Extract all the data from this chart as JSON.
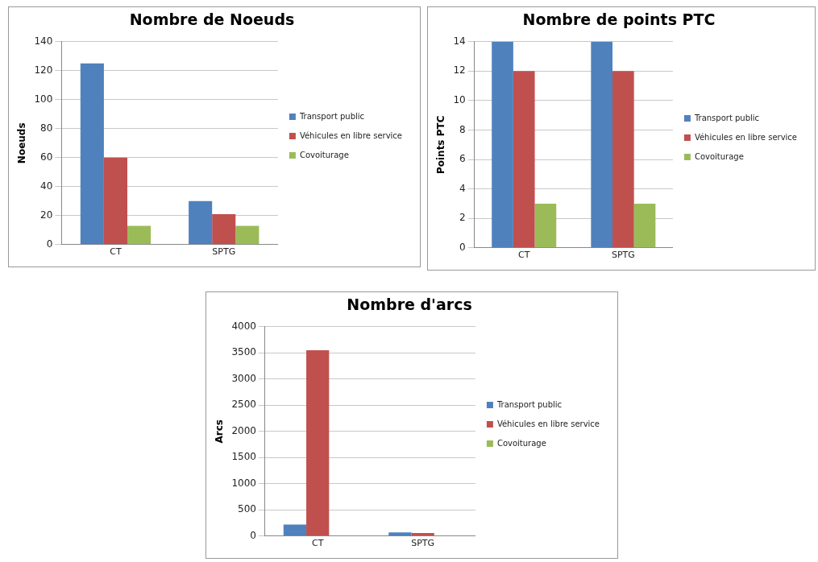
{
  "chart_data": [
    {
      "type": "bar",
      "title": "Nombre de Noeuds",
      "ylabel": "Noeuds",
      "categories": [
        "CT",
        "SPTG"
      ],
      "series": [
        {
          "name": "Transport public",
          "color": "#4f81bd",
          "values": [
            125,
            30
          ]
        },
        {
          "name": "Véhicules en libre service",
          "color": "#c0504d",
          "values": [
            60,
            21
          ]
        },
        {
          "name": "Covoiturage",
          "color": "#9bbb59",
          "values": [
            13,
            13
          ]
        }
      ],
      "ylim": [
        0,
        140
      ],
      "yticks": [
        0,
        20,
        40,
        60,
        80,
        100,
        120,
        140
      ],
      "grid": "y",
      "legend": "right"
    },
    {
      "type": "bar",
      "title": "Nombre de points PTC",
      "ylabel": "Points PTC",
      "categories": [
        "CT",
        "SPTG"
      ],
      "series": [
        {
          "name": "Transport public",
          "color": "#4f81bd",
          "values": [
            14,
            14
          ]
        },
        {
          "name": "Véhicules en libre service",
          "color": "#c0504d",
          "values": [
            12,
            12
          ]
        },
        {
          "name": "Covoiturage",
          "color": "#9bbb59",
          "values": [
            3,
            3
          ]
        }
      ],
      "ylim": [
        0,
        14
      ],
      "yticks": [
        0,
        2,
        4,
        6,
        8,
        10,
        12,
        14
      ],
      "grid": "y",
      "legend": "right"
    },
    {
      "type": "bar",
      "title": "Nombre d'arcs",
      "ylabel": "Arcs",
      "categories": [
        "CT",
        "SPTG"
      ],
      "series": [
        {
          "name": "Transport public",
          "color": "#4f81bd",
          "values": [
            220,
            70
          ]
        },
        {
          "name": "Véhicules en libre service",
          "color": "#c0504d",
          "values": [
            3550,
            60
          ]
        },
        {
          "name": "Covoiturage",
          "color": "#9bbb59",
          "values": [
            10,
            10
          ]
        }
      ],
      "ylim": [
        0,
        4000
      ],
      "yticks": [
        0,
        500,
        1000,
        1500,
        2000,
        2500,
        3000,
        3500,
        4000
      ],
      "grid": "y",
      "legend": "right"
    }
  ]
}
